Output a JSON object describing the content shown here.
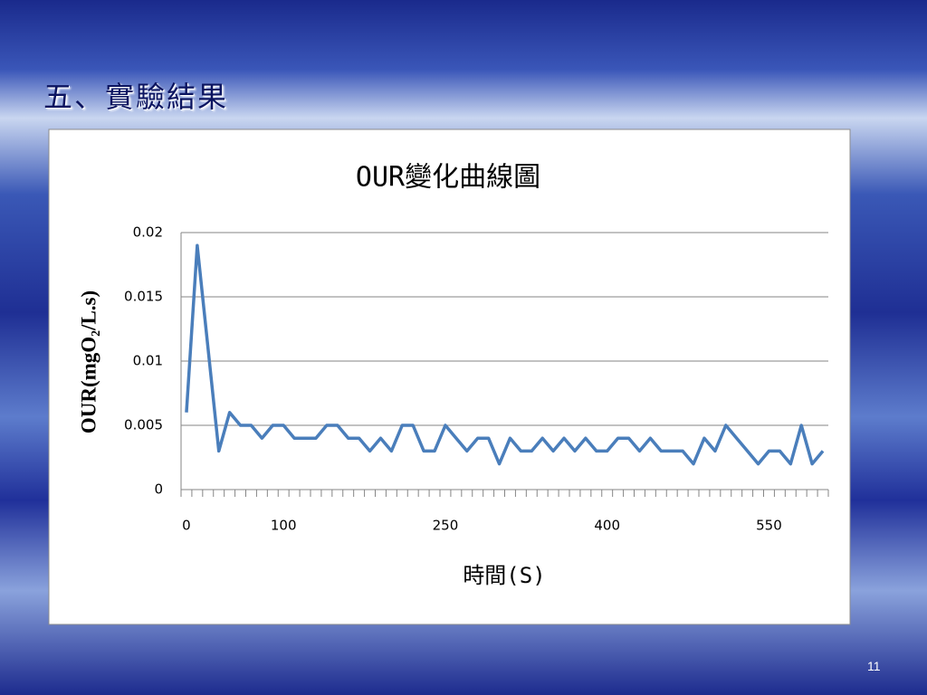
{
  "slide_title": "五、實驗結果",
  "page_number": "11",
  "chart_data": {
    "type": "line",
    "title": "OUR變化曲線圖",
    "y_label": "OUR(mgO₂/L.s)",
    "x_label": "時間(S)",
    "categories": [
      "0",
      null,
      null,
      null,
      null,
      null,
      null,
      null,
      null,
      "100",
      null,
      null,
      null,
      null,
      null,
      null,
      null,
      null,
      null,
      null,
      null,
      null,
      null,
      null,
      "250",
      null,
      null,
      null,
      null,
      null,
      null,
      null,
      null,
      null,
      null,
      null,
      null,
      null,
      null,
      "400",
      null,
      null,
      null,
      null,
      null,
      null,
      null,
      null,
      null,
      null,
      null,
      null,
      null,
      null,
      "550",
      null,
      null,
      null,
      null,
      null
    ],
    "series": [
      {
        "name": "OUR",
        "color": "#4a7ebb",
        "values": [
          0.006,
          0.019,
          0.011,
          0.003,
          0.006,
          0.005,
          0.005,
          0.004,
          0.005,
          0.005,
          0.004,
          0.004,
          0.004,
          0.005,
          0.005,
          0.004,
          0.004,
          0.003,
          0.004,
          0.003,
          0.005,
          0.005,
          0.003,
          0.003,
          0.005,
          0.004,
          0.003,
          0.004,
          0.004,
          0.002,
          0.004,
          0.003,
          0.003,
          0.004,
          0.003,
          0.004,
          0.003,
          0.004,
          0.003,
          0.003,
          0.004,
          0.004,
          0.003,
          0.004,
          0.003,
          0.003,
          0.003,
          0.002,
          0.004,
          0.003,
          0.005,
          0.004,
          0.003,
          0.002,
          0.003,
          0.003,
          0.002,
          0.005,
          0.002,
          0.003
        ]
      }
    ],
    "ylim": [
      0,
      0.02
    ],
    "yticks": [
      0,
      0.005,
      0.01,
      0.015,
      0.02
    ],
    "grid": true
  }
}
